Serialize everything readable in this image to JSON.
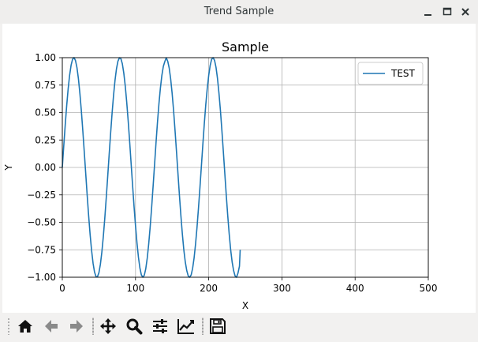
{
  "window": {
    "title": "Trend Sample",
    "controls": {
      "minimize_icon": "minimize-icon",
      "maximize_icon": "maximize-icon",
      "close_icon": "close-icon"
    }
  },
  "chart_data": {
    "type": "line",
    "title": "Sample",
    "xlabel": "X",
    "ylabel": "Y",
    "xlim": [
      0,
      500
    ],
    "ylim": [
      -1.0,
      1.0
    ],
    "x_ticks": [
      "0",
      "100",
      "200",
      "300",
      "400",
      "500"
    ],
    "y_ticks": [
      "1.00",
      "0.75",
      "0.50",
      "0.25",
      "0.00",
      "−0.25",
      "−0.50",
      "−0.75",
      "−1.00"
    ],
    "grid": true,
    "legend": "top-right",
    "series": [
      {
        "name": "TEST",
        "color": "#1f77b4",
        "x": [
          0,
          2,
          4,
          6,
          8,
          10,
          12,
          14,
          16,
          18,
          20,
          22,
          24,
          26,
          28,
          30,
          32,
          34,
          36,
          38,
          40,
          42,
          44,
          46,
          48,
          50,
          52,
          54,
          56,
          58,
          60,
          62,
          64,
          66,
          68,
          70,
          72,
          74,
          76,
          78,
          80,
          82,
          84,
          86,
          88,
          90,
          92,
          94,
          96,
          98,
          100,
          102,
          104,
          106,
          108,
          110,
          112,
          114,
          116,
          118,
          120,
          122,
          124,
          126,
          128,
          130,
          132,
          134,
          136,
          138,
          140,
          142,
          144,
          146,
          148,
          150,
          152,
          154,
          156,
          158,
          160,
          162,
          164,
          166,
          168,
          170,
          172,
          174,
          176,
          178,
          180,
          182,
          184,
          186,
          188,
          190,
          192,
          194,
          196,
          198,
          200,
          202,
          204,
          206,
          208,
          210,
          212,
          214,
          216,
          218,
          220,
          222,
          224,
          226,
          228,
          230,
          232,
          234,
          236,
          238,
          240,
          242,
          243
        ],
        "y": [
          0.0,
          0.199,
          0.389,
          0.565,
          0.717,
          0.841,
          0.932,
          0.985,
          1.0,
          0.974,
          0.909,
          0.808,
          0.675,
          0.516,
          0.335,
          0.141,
          -0.058,
          -0.256,
          -0.443,
          -0.612,
          -0.757,
          -0.872,
          -0.952,
          -0.994,
          -0.996,
          -0.959,
          -0.883,
          -0.772,
          -0.631,
          -0.465,
          -0.279,
          -0.083,
          0.117,
          0.312,
          0.494,
          0.657,
          0.794,
          0.899,
          0.968,
          0.999,
          0.991,
          0.944,
          0.859,
          0.741,
          0.594,
          0.423,
          0.234,
          0.036,
          -0.163,
          -0.355,
          -0.532,
          -0.688,
          -0.818,
          -0.916,
          -0.979,
          -1.0,
          -0.982,
          -0.923,
          -0.827,
          -0.699,
          -0.544,
          -0.367,
          -0.175,
          0.024,
          0.223,
          0.411,
          0.58,
          0.723,
          0.838,
          0.92,
          0.964,
          0.999,
          0.968,
          0.906,
          0.808,
          0.677,
          0.519,
          0.337,
          0.143,
          -0.056,
          -0.254,
          -0.44,
          -0.607,
          -0.751,
          -0.861,
          -0.939,
          -0.988,
          -1.0,
          -0.98,
          -0.92,
          -0.826,
          -0.699,
          -0.547,
          -0.373,
          -0.186,
          0.012,
          0.211,
          0.4,
          0.572,
          0.72,
          0.838,
          0.929,
          0.985,
          1.0,
          0.975,
          0.911,
          0.81,
          0.677,
          0.519,
          0.338,
          0.143,
          -0.056,
          -0.254,
          -0.44,
          -0.607,
          -0.751,
          -0.861,
          -0.939,
          -0.988,
          -1.0,
          -0.962,
          -0.9,
          -0.75
        ]
      }
    ]
  },
  "toolbar": {
    "buttons": [
      {
        "name": "home-button",
        "icon": "home-icon"
      },
      {
        "name": "back-button",
        "icon": "arrow-left-icon"
      },
      {
        "name": "forward-button",
        "icon": "arrow-right-icon"
      },
      {
        "name": "pan-button",
        "icon": "move-icon"
      },
      {
        "name": "zoom-button",
        "icon": "magnifier-icon"
      },
      {
        "name": "subplots-button",
        "icon": "sliders-icon"
      },
      {
        "name": "edit-axes-button",
        "icon": "line-chart-icon"
      },
      {
        "name": "save-button",
        "icon": "floppy-disk-icon"
      }
    ]
  }
}
